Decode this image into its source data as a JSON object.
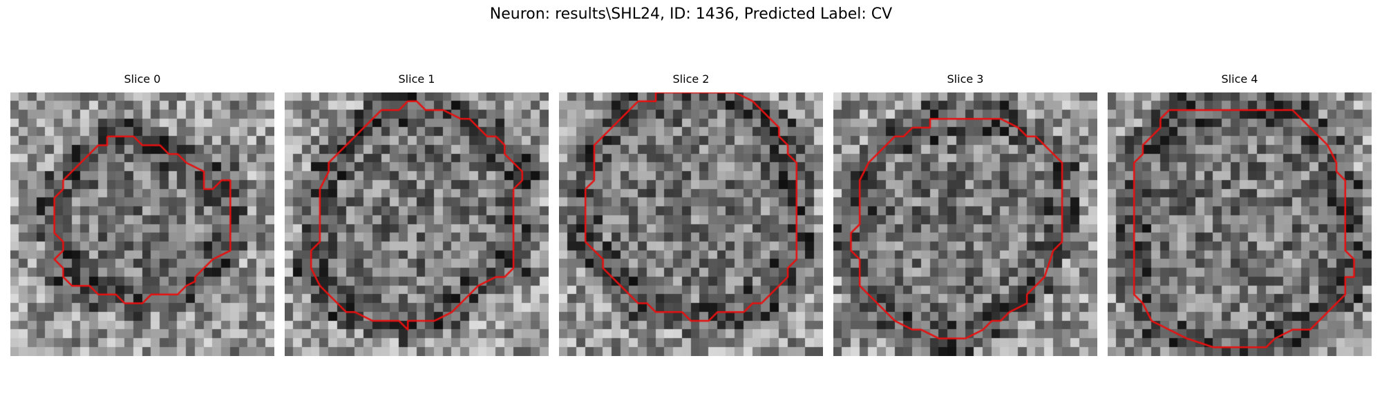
{
  "figure": {
    "title": "Neuron: results\\SHL24, ID: 1436, Predicted Label: CV"
  },
  "image": {
    "grid_size": 30,
    "colormap": "gray",
    "contour_color": "#e81010"
  },
  "slices": [
    {
      "title": "Slice 0",
      "contour": [
        [
          11,
          5
        ],
        [
          14,
          5
        ],
        [
          15,
          6
        ],
        [
          17,
          6
        ],
        [
          18,
          7
        ],
        [
          19,
          7
        ],
        [
          20,
          8
        ],
        [
          22,
          9
        ],
        [
          22,
          10
        ],
        [
          22,
          11
        ],
        [
          23,
          11
        ],
        [
          24,
          10
        ],
        [
          25,
          10
        ],
        [
          25,
          18
        ],
        [
          23,
          19
        ],
        [
          22,
          20
        ],
        [
          21,
          21
        ],
        [
          21,
          21.5
        ],
        [
          20,
          22
        ],
        [
          19,
          23
        ],
        [
          16,
          23
        ],
        [
          15,
          24
        ],
        [
          13,
          24
        ],
        [
          12,
          23
        ],
        [
          10,
          23
        ],
        [
          9,
          22
        ],
        [
          7,
          22
        ],
        [
          6,
          21
        ],
        [
          6,
          20
        ],
        [
          5,
          19
        ],
        [
          6,
          18
        ],
        [
          6,
          17
        ],
        [
          5,
          16
        ],
        [
          5,
          12
        ],
        [
          6,
          11
        ],
        [
          6,
          10
        ],
        [
          7,
          9
        ],
        [
          8,
          8
        ],
        [
          9,
          7
        ],
        [
          10,
          6
        ],
        [
          11,
          6
        ],
        [
          11,
          5
        ]
      ]
    },
    {
      "title": "Slice 1",
      "contour": [
        [
          11,
          2
        ],
        [
          13,
          2
        ],
        [
          14,
          1
        ],
        [
          15,
          1
        ],
        [
          16,
          2
        ],
        [
          18,
          2
        ],
        [
          20,
          3
        ],
        [
          21,
          3
        ],
        [
          22,
          4
        ],
        [
          23,
          5
        ],
        [
          24,
          5
        ],
        [
          25,
          6
        ],
        [
          25,
          7
        ],
        [
          26,
          8
        ],
        [
          27,
          9
        ],
        [
          27,
          10
        ],
        [
          26,
          11
        ],
        [
          26,
          20
        ],
        [
          25,
          21
        ],
        [
          24,
          21
        ],
        [
          22,
          22
        ],
        [
          21,
          23
        ],
        [
          20,
          24
        ],
        [
          19,
          25
        ],
        [
          17,
          26
        ],
        [
          14,
          26
        ],
        [
          14,
          27
        ],
        [
          13,
          26
        ],
        [
          10,
          26
        ],
        [
          8,
          25
        ],
        [
          7,
          25
        ],
        [
          6,
          24
        ],
        [
          5,
          23
        ],
        [
          4,
          22
        ],
        [
          3,
          20
        ],
        [
          3,
          18
        ],
        [
          4,
          17
        ],
        [
          4,
          12
        ],
        [
          4,
          11
        ],
        [
          5,
          9
        ],
        [
          5,
          8
        ],
        [
          6,
          7
        ],
        [
          7,
          6
        ],
        [
          8,
          5
        ],
        [
          9,
          4
        ],
        [
          10,
          3
        ],
        [
          11,
          2
        ]
      ]
    },
    {
      "title": "Slice 2",
      "contour": [
        [
          9,
          1
        ],
        [
          11,
          1
        ],
        [
          11,
          0
        ],
        [
          20,
          0
        ],
        [
          22,
          1
        ],
        [
          23,
          2
        ],
        [
          24,
          3
        ],
        [
          25,
          4
        ],
        [
          25,
          5
        ],
        [
          26,
          6
        ],
        [
          26,
          7
        ],
        [
          27,
          8
        ],
        [
          27,
          19
        ],
        [
          26,
          20
        ],
        [
          26,
          21
        ],
        [
          25,
          22
        ],
        [
          24,
          23
        ],
        [
          23,
          24
        ],
        [
          22,
          24
        ],
        [
          21,
          25
        ],
        [
          18,
          25
        ],
        [
          17,
          26
        ],
        [
          15,
          26
        ],
        [
          14,
          25
        ],
        [
          11,
          25
        ],
        [
          10,
          24
        ],
        [
          9,
          24
        ],
        [
          8,
          23
        ],
        [
          7,
          22
        ],
        [
          6,
          21
        ],
        [
          5,
          20
        ],
        [
          5,
          19
        ],
        [
          4,
          18
        ],
        [
          3,
          17
        ],
        [
          3,
          13
        ],
        [
          3,
          11
        ],
        [
          4,
          10
        ],
        [
          4,
          6
        ],
        [
          5,
          5
        ],
        [
          6,
          4
        ],
        [
          7,
          3
        ],
        [
          8,
          2
        ],
        [
          9,
          1
        ]
      ]
    },
    {
      "title": "Slice 3",
      "contour": [
        [
          9,
          4
        ],
        [
          11,
          4
        ],
        [
          11,
          3
        ],
        [
          19,
          3
        ],
        [
          21,
          4
        ],
        [
          22,
          5
        ],
        [
          23,
          5
        ],
        [
          24,
          6
        ],
        [
          25,
          7
        ],
        [
          26,
          8
        ],
        [
          26,
          9
        ],
        [
          26,
          10
        ],
        [
          26,
          16
        ],
        [
          26,
          17
        ],
        [
          25,
          18
        ],
        [
          24,
          21
        ],
        [
          23,
          22
        ],
        [
          22,
          23
        ],
        [
          22,
          24
        ],
        [
          20,
          25
        ],
        [
          19,
          26
        ],
        [
          18,
          26
        ],
        [
          17,
          27
        ],
        [
          15,
          28
        ],
        [
          13,
          28
        ],
        [
          12,
          28
        ],
        [
          10,
          27
        ],
        [
          9,
          27
        ],
        [
          7,
          26
        ],
        [
          6,
          25
        ],
        [
          5,
          24
        ],
        [
          4,
          23
        ],
        [
          3,
          22
        ],
        [
          3,
          19
        ],
        [
          2,
          18
        ],
        [
          2,
          16
        ],
        [
          3,
          15
        ],
        [
          3,
          14
        ],
        [
          3,
          12
        ],
        [
          3,
          10
        ],
        [
          4,
          8
        ],
        [
          5,
          7
        ],
        [
          6,
          6
        ],
        [
          7,
          5
        ],
        [
          8,
          5
        ],
        [
          9,
          4
        ]
      ]
    },
    {
      "title": "Slice 4",
      "contour": [
        [
          7,
          2
        ],
        [
          21,
          2
        ],
        [
          22,
          3
        ],
        [
          23,
          4
        ],
        [
          24,
          5
        ],
        [
          25,
          6
        ],
        [
          26,
          8
        ],
        [
          26,
          9
        ],
        [
          27,
          10
        ],
        [
          27,
          18
        ],
        [
          28,
          19
        ],
        [
          28,
          21
        ],
        [
          27,
          21
        ],
        [
          27,
          23
        ],
        [
          26,
          24
        ],
        [
          25,
          25
        ],
        [
          24,
          26
        ],
        [
          23,
          27
        ],
        [
          21,
          27
        ],
        [
          19,
          28
        ],
        [
          18,
          29
        ],
        [
          12,
          29
        ],
        [
          9,
          28
        ],
        [
          7,
          27
        ],
        [
          5,
          26
        ],
        [
          4,
          24
        ],
        [
          3,
          23
        ],
        [
          3,
          20
        ],
        [
          3,
          18
        ],
        [
          3,
          15
        ],
        [
          3,
          8
        ],
        [
          4,
          7
        ],
        [
          4,
          6
        ],
        [
          5,
          5
        ],
        [
          6,
          4
        ],
        [
          6,
          3
        ],
        [
          7,
          2
        ]
      ]
    }
  ]
}
